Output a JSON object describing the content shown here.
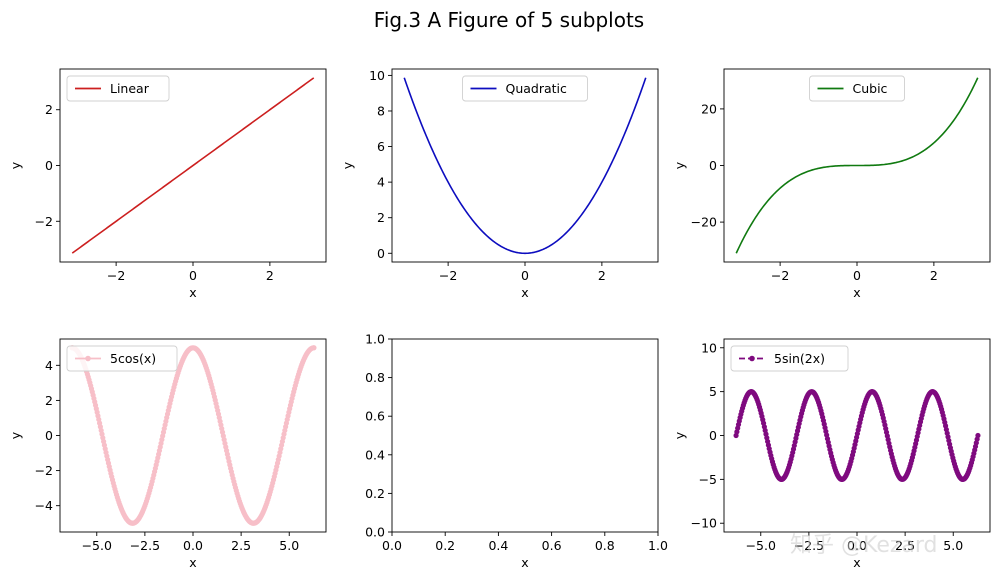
{
  "figure": {
    "suptitle": "Fig.3 A Figure of 5 subplots",
    "watermark": "知乎 @Kezard"
  },
  "chart_data": [
    {
      "type": "line",
      "function": "x",
      "x_range": [
        -3.1416,
        3.1416
      ],
      "samples": 200,
      "series": [
        {
          "name": "Linear",
          "color": "#cc1f1f",
          "style": "solid"
        }
      ],
      "xlabel": "x",
      "ylabel": "y",
      "xlim": [
        -3.46,
        3.46
      ],
      "ylim": [
        -3.46,
        3.46
      ],
      "xticks": [
        -2,
        0,
        2
      ],
      "yticks": [
        -2,
        0,
        2
      ],
      "legend": "upper left"
    },
    {
      "type": "line",
      "function": "x^2",
      "x_range": [
        -3.1416,
        3.1416
      ],
      "samples": 200,
      "series": [
        {
          "name": "Quadratic",
          "color": "#0d0dbf",
          "style": "solid"
        }
      ],
      "xlabel": "x",
      "ylabel": "y",
      "xlim": [
        -3.46,
        3.46
      ],
      "ylim": [
        -0.49,
        10.36
      ],
      "xticks": [
        -2,
        0,
        2
      ],
      "yticks": [
        0,
        2,
        4,
        6,
        8,
        10
      ],
      "legend": "upper center"
    },
    {
      "type": "line",
      "function": "x^3",
      "x_range": [
        -3.1416,
        3.1416
      ],
      "samples": 200,
      "series": [
        {
          "name": "Cubic",
          "color": "#107a10",
          "style": "solid"
        }
      ],
      "xlabel": "x",
      "ylabel": "y",
      "xlim": [
        -3.46,
        3.46
      ],
      "ylim": [
        -34.1,
        34.1
      ],
      "xticks": [
        -2,
        0,
        2
      ],
      "yticks": [
        -20,
        0,
        20
      ],
      "legend": "upper center"
    },
    {
      "type": "line",
      "function": "5cos(x)",
      "x_range": [
        -6.2832,
        6.2832
      ],
      "samples": 300,
      "series": [
        {
          "name": "5cos(x)",
          "color": "#f7bfc8",
          "style": "solid",
          "marker": "o"
        }
      ],
      "xlabel": "x",
      "ylabel": "y",
      "xlim": [
        -6.91,
        6.91
      ],
      "ylim": [
        -5.5,
        5.5
      ],
      "xticks": [
        -5.0,
        -2.5,
        0.0,
        2.5,
        5.0
      ],
      "yticks": [
        -4,
        -2,
        0,
        2,
        4
      ],
      "tick_labels_x": [
        "−5.0",
        "−2.5",
        "0.0",
        "2.5",
        "5.0"
      ],
      "legend": "upper left"
    },
    {
      "type": "line",
      "empty": true,
      "xlim": [
        0,
        1
      ],
      "ylim": [
        0,
        1
      ],
      "xlabel": "x",
      "ylabel": "",
      "xticks": [
        0.0,
        0.2,
        0.4,
        0.6,
        0.8,
        1.0
      ],
      "yticks": [
        0.0,
        0.2,
        0.4,
        0.6,
        0.8,
        1.0
      ],
      "tick_labels_x": [
        "0.0",
        "0.2",
        "0.4",
        "0.6",
        "0.8",
        "1.0"
      ],
      "tick_labels_y": [
        "0.0",
        "0.2",
        "0.4",
        "0.6",
        "0.8",
        "1.0"
      ]
    },
    {
      "type": "line",
      "function": "5sin(2x)",
      "x_range": [
        -6.2832,
        6.2832
      ],
      "samples": 300,
      "series": [
        {
          "name": "5sin(2x)",
          "color": "#7f0a7f",
          "style": "dashed",
          "marker": "o"
        }
      ],
      "xlabel": "x",
      "ylabel": "y",
      "xlim": [
        -6.91,
        6.91
      ],
      "ylim": [
        -11,
        11
      ],
      "xticks": [
        -5.0,
        -2.5,
        0.0,
        2.5,
        5.0
      ],
      "yticks": [
        -10,
        -5,
        0,
        5,
        10
      ],
      "tick_labels_x": [
        "−5.0",
        "−2.5",
        "0.0",
        "2.5",
        "5.0"
      ],
      "legend": "upper left"
    }
  ]
}
